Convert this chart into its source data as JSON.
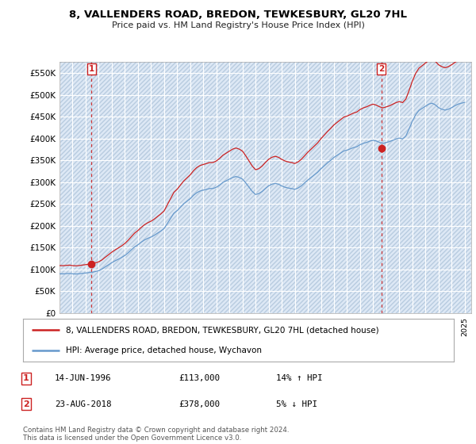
{
  "title": "8, VALLENDERS ROAD, BREDON, TEWKESBURY, GL20 7HL",
  "subtitle": "Price paid vs. HM Land Registry's House Price Index (HPI)",
  "xlim_start": 1994.0,
  "xlim_end": 2025.5,
  "ylim_min": 0,
  "ylim_max": 575000,
  "yticks": [
    0,
    50000,
    100000,
    150000,
    200000,
    250000,
    300000,
    350000,
    400000,
    450000,
    500000,
    550000
  ],
  "ytick_labels": [
    "£0",
    "£50K",
    "£100K",
    "£150K",
    "£200K",
    "£250K",
    "£300K",
    "£350K",
    "£400K",
    "£450K",
    "£500K",
    "£550K"
  ],
  "hpi_color": "#6699cc",
  "price_color": "#cc2222",
  "marker_color": "#cc2222",
  "sale1_x": 1996.45,
  "sale1_y": 113000,
  "sale1_label": "1",
  "sale2_x": 2018.64,
  "sale2_y": 378000,
  "sale2_label": "2",
  "legend_line1": "8, VALLENDERS ROAD, BREDON, TEWKESBURY, GL20 7HL (detached house)",
  "legend_line2": "HPI: Average price, detached house, Wychavon",
  "table_row1_num": "1",
  "table_row1_date": "14-JUN-1996",
  "table_row1_price": "£113,000",
  "table_row1_hpi": "14% ↑ HPI",
  "table_row2_num": "2",
  "table_row2_date": "23-AUG-2018",
  "table_row2_price": "£378,000",
  "table_row2_hpi": "5% ↓ HPI",
  "footnote": "Contains HM Land Registry data © Crown copyright and database right 2024.\nThis data is licensed under the Open Government Licence v3.0.",
  "background_color": "#ffffff",
  "plot_bg_color": "#dde8f5",
  "grid_color": "#ffffff",
  "hatch_color": "#b8cce0",
  "hpi_index": [
    67.2,
    67.0,
    67.4,
    67.8,
    67.1,
    66.8,
    67.2,
    67.9,
    68.5,
    69.2,
    69.8,
    71.0,
    72.5,
    75.2,
    79.0,
    82.5,
    86.2,
    89.3,
    92.1,
    95.0,
    98.5,
    103.0,
    108.2,
    113.2,
    116.8,
    121.2,
    125.0,
    127.8,
    130.0,
    133.0,
    136.7,
    140.3,
    144.5,
    153.3,
    162.0,
    170.8,
    175.2,
    181.1,
    186.9,
    191.3,
    195.6,
    201.5,
    205.9,
    208.8,
    210.3,
    211.7,
    213.1,
    213.1,
    215.3,
    219.0,
    223.4,
    226.3,
    229.2,
    232.1,
    233.6,
    232.1,
    229.2,
    222.6,
    215.3,
    208.0,
    202.9,
    204.4,
    208.0,
    213.1,
    217.6,
    220.5,
    221.9,
    220.5,
    217.6,
    215.3,
    213.9,
    213.1,
    211.7,
    213.9,
    217.6,
    222.6,
    227.7,
    232.1,
    236.5,
    240.9,
    246.8,
    251.8,
    256.9,
    261.4,
    266.4,
    270.1,
    273.7,
    277.4,
    278.8,
    281.0,
    283.2,
    284.6,
    288.2,
    290.5,
    292.0,
    294.2,
    295.7,
    294.2,
    291.9,
    290.5,
    291.9,
    293.4,
    295.7,
    297.9,
    299.4,
    297.9,
    303.0,
    315.4,
    328.5,
    339.4,
    346.7,
    350.3,
    354.0,
    357.6,
    359.1,
    356.3,
    351.5,
    348.8,
    347.3,
    348.8,
    351.5,
    354.8,
    357.6,
    359.1,
    360.5
  ],
  "hpi_base_idx": 9,
  "hpi_base_price": 90000,
  "price_base_idx": 10,
  "price_base_price": 113000,
  "sale2_idx": 98
}
